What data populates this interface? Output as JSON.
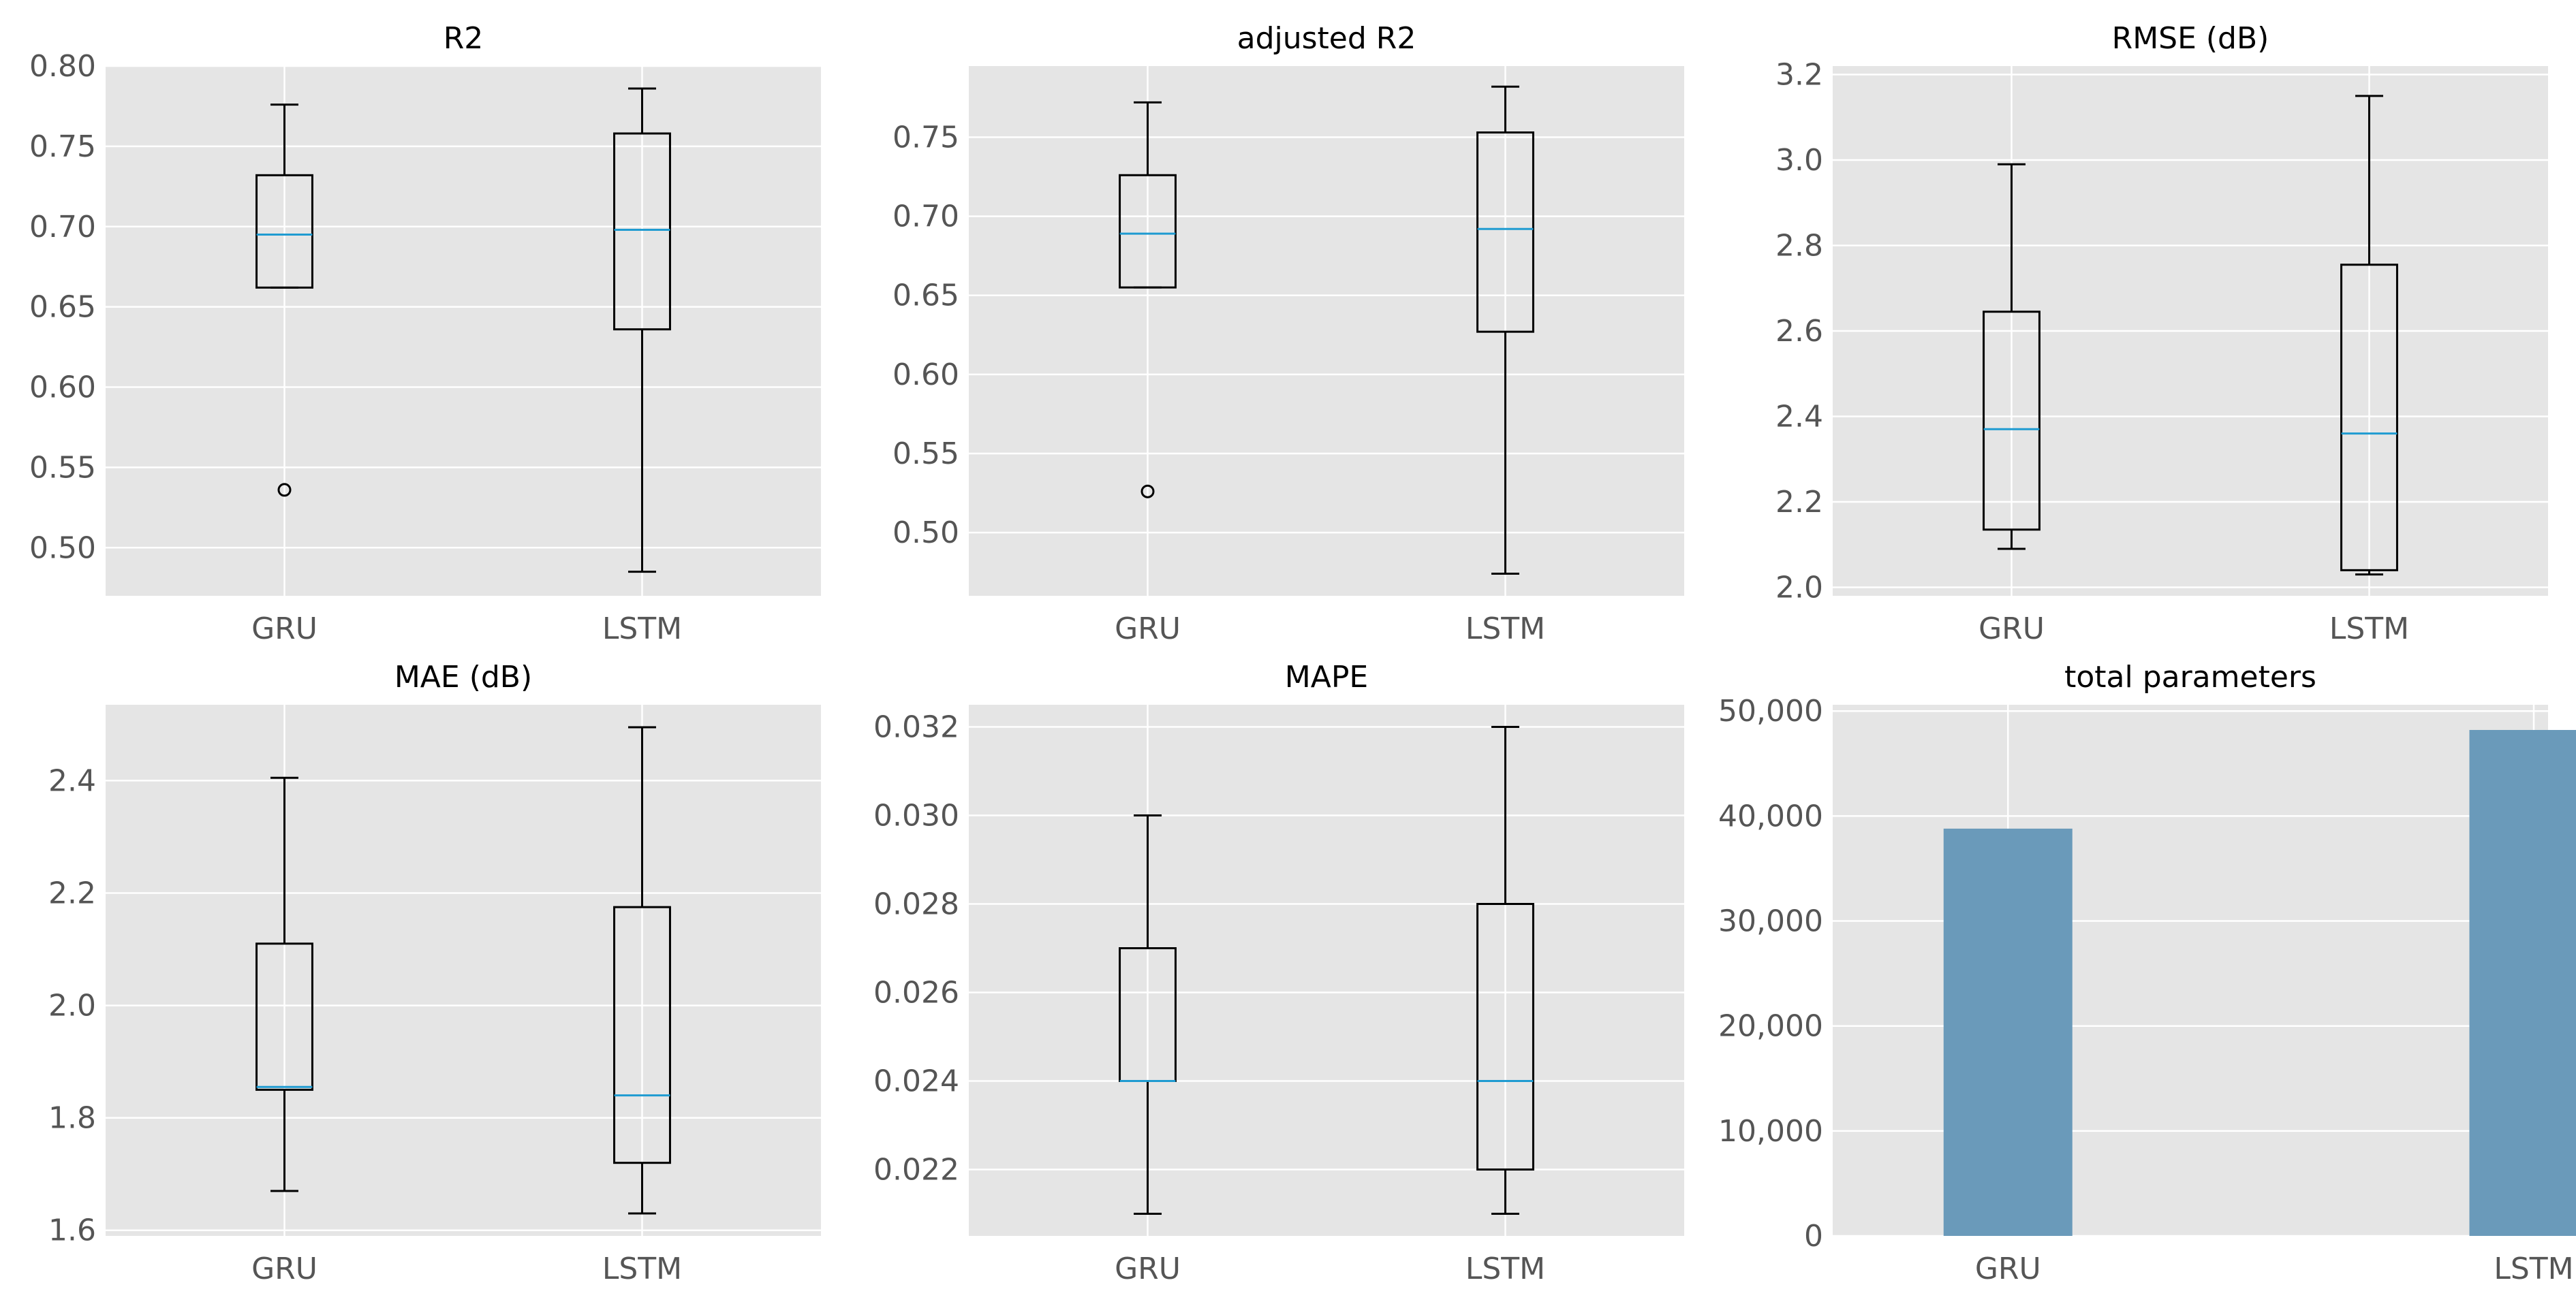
{
  "figure_colors": {
    "panel_bg": "#e5e5e5",
    "grid": "#ffffff",
    "box_edge": "#000000",
    "median": "#1f9bd1",
    "bar": "#6a9aba",
    "tick_text": "#555555"
  },
  "chart_data": [
    {
      "type": "box",
      "title": "R2",
      "categories": [
        "GRU",
        "LSTM"
      ],
      "ylim": [
        0.47,
        0.8
      ],
      "yticks": [
        0.5,
        0.55,
        0.6,
        0.65,
        0.7,
        0.75,
        0.8
      ],
      "ytick_labels": [
        "0.50",
        "0.55",
        "0.60",
        "0.65",
        "0.70",
        "0.75",
        "0.80"
      ],
      "boxes": [
        {
          "whislo": 0.662,
          "q1": 0.662,
          "med": 0.695,
          "q3": 0.732,
          "whishi": 0.776,
          "fliers": [
            0.536
          ]
        },
        {
          "whislo": 0.485,
          "q1": 0.636,
          "med": 0.698,
          "q3": 0.758,
          "whishi": 0.786,
          "fliers": []
        }
      ]
    },
    {
      "type": "box",
      "title": "adjusted R2",
      "categories": [
        "GRU",
        "LSTM"
      ],
      "ylim": [
        0.46,
        0.795
      ],
      "yticks": [
        0.5,
        0.55,
        0.6,
        0.65,
        0.7,
        0.75
      ],
      "ytick_labels": [
        "0.50",
        "0.55",
        "0.60",
        "0.65",
        "0.70",
        "0.75"
      ],
      "boxes": [
        {
          "whislo": 0.655,
          "q1": 0.655,
          "med": 0.689,
          "q3": 0.726,
          "whishi": 0.772,
          "fliers": [
            0.526
          ]
        },
        {
          "whislo": 0.474,
          "q1": 0.627,
          "med": 0.692,
          "q3": 0.753,
          "whishi": 0.782,
          "fliers": []
        }
      ]
    },
    {
      "type": "box",
      "title": "RMSE (dB)",
      "categories": [
        "GRU",
        "LSTM"
      ],
      "ylim": [
        1.98,
        3.22
      ],
      "yticks": [
        2.0,
        2.2,
        2.4,
        2.6,
        2.8,
        3.0,
        3.2
      ],
      "ytick_labels": [
        "2.0",
        "2.2",
        "2.4",
        "2.6",
        "2.8",
        "3.0",
        "3.2"
      ],
      "boxes": [
        {
          "whislo": 2.09,
          "q1": 2.135,
          "med": 2.37,
          "q3": 2.645,
          "whishi": 2.99,
          "fliers": []
        },
        {
          "whislo": 2.03,
          "q1": 2.04,
          "med": 2.36,
          "q3": 2.755,
          "whishi": 3.15,
          "fliers": []
        }
      ]
    },
    {
      "type": "box",
      "title": "MAE (dB)",
      "categories": [
        "GRU",
        "LSTM"
      ],
      "ylim": [
        1.59,
        2.535
      ],
      "yticks": [
        1.6,
        1.8,
        2.0,
        2.2,
        2.4
      ],
      "ytick_labels": [
        "1.6",
        "1.8",
        "2.0",
        "2.2",
        "2.4"
      ],
      "boxes": [
        {
          "whislo": 1.67,
          "q1": 1.85,
          "med": 1.855,
          "q3": 2.11,
          "whishi": 2.405,
          "fliers": []
        },
        {
          "whislo": 1.63,
          "q1": 1.72,
          "med": 1.84,
          "q3": 2.175,
          "whishi": 2.495,
          "fliers": []
        }
      ]
    },
    {
      "type": "box",
      "title": "MAPE",
      "categories": [
        "GRU",
        "LSTM"
      ],
      "ylim": [
        0.0205,
        0.0325
      ],
      "yticks": [
        0.022,
        0.024,
        0.026,
        0.028,
        0.03,
        0.032
      ],
      "ytick_labels": [
        "0.022",
        "0.024",
        "0.026",
        "0.028",
        "0.030",
        "0.032"
      ],
      "boxes": [
        {
          "whislo": 0.021,
          "q1": 0.024,
          "med": 0.024,
          "q3": 0.027,
          "whishi": 0.03,
          "fliers": []
        },
        {
          "whislo": 0.021,
          "q1": 0.022,
          "med": 0.024,
          "q3": 0.028,
          "whishi": 0.032,
          "fliers": []
        }
      ]
    },
    {
      "type": "bar",
      "title": "total parameters",
      "categories": [
        "GRU",
        "LSTM"
      ],
      "values": [
        38800,
        48200
      ],
      "ylim": [
        0,
        50600
      ],
      "yticks": [
        0,
        10000,
        20000,
        30000,
        40000,
        50000
      ],
      "ytick_labels": [
        "0",
        "10,000",
        "20,000",
        "30,000",
        "40,000",
        "50,000"
      ]
    }
  ]
}
